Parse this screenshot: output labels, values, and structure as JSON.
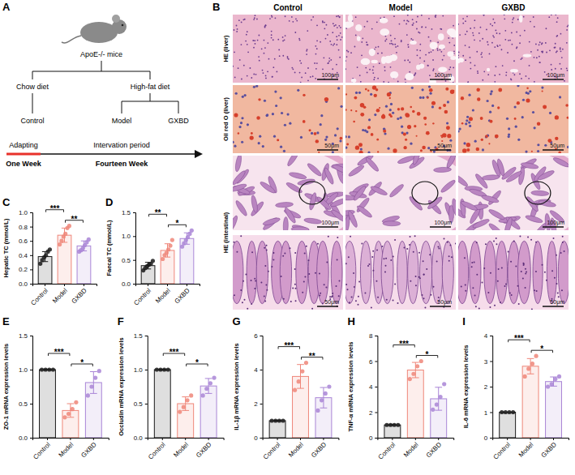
{
  "figure": {
    "panel_a": {
      "panel": "A",
      "subject": "ApoE-/- mice",
      "diets": [
        {
          "label": "Chow diet",
          "groups": [
            "Control"
          ]
        },
        {
          "label": "High-fat diet",
          "groups": [
            "Model",
            "GXBD"
          ]
        }
      ],
      "timeline": [
        {
          "phase": "Adapting",
          "duration": "One Week"
        },
        {
          "phase": "Intervation period",
          "duration": "Fourteen Week"
        }
      ]
    },
    "panel_b": {
      "panel": "B",
      "columns": [
        "Control",
        "Model",
        "GXBD"
      ],
      "rows": [
        {
          "label": "HE (liver)",
          "scale_bars": [
            "100μm",
            "100μm",
            "100μm"
          ]
        },
        {
          "label": "Oil red O (liver)",
          "scale_bars": [
            "50μm",
            "50μm",
            "50μm"
          ]
        },
        {
          "label": "HE (intestinal)",
          "scale_bars": [
            "100μm",
            "100μm",
            "100μm"
          ],
          "zoom_scale_bars": [
            "50μm",
            "50μm",
            "50μm"
          ]
        }
      ]
    }
  },
  "chart_data": [
    {
      "type": "bar",
      "panel": "C",
      "ylabel": "Hepatic TC (mmol/L)",
      "categories": [
        "Control",
        "Model",
        "GXBD"
      ],
      "values": [
        0.38,
        0.68,
        0.53
      ],
      "errors": [
        0.07,
        0.1,
        0.07
      ],
      "points": [
        [
          0.28,
          0.33,
          0.37,
          0.4,
          0.45,
          0.48
        ],
        [
          0.55,
          0.6,
          0.66,
          0.7,
          0.78,
          0.81
        ],
        [
          0.45,
          0.47,
          0.5,
          0.54,
          0.58,
          0.62
        ]
      ],
      "colors": [
        "#1a1a1a",
        "#ef8679",
        "#a985d6"
      ],
      "ylim": [
        0,
        1.0
      ],
      "yticks": [
        {
          "value": 0,
          "label": "0.0"
        },
        0.2,
        0.4,
        0.6,
        0.8,
        {
          "value": 1.0,
          "label": "1.0"
        }
      ],
      "annotations": [
        {
          "text": "***",
          "between": [
            "Control",
            "Model"
          ]
        },
        {
          "text": "**",
          "between": [
            "Model",
            "GXBD"
          ]
        }
      ]
    },
    {
      "type": "bar",
      "panel": "D",
      "ylabel": "Faecal TC (mmol/L)",
      "categories": [
        "Control",
        "Model",
        "GXBD"
      ],
      "values": [
        0.38,
        0.7,
        0.95
      ],
      "errors": [
        0.07,
        0.14,
        0.12
      ],
      "points": [
        [
          0.28,
          0.33,
          0.37,
          0.4,
          0.42,
          0.48
        ],
        [
          0.52,
          0.6,
          0.65,
          0.72,
          0.8,
          0.92
        ],
        [
          0.78,
          0.85,
          0.92,
          0.98,
          1.05,
          1.12
        ]
      ],
      "colors": [
        "#1a1a1a",
        "#ef8679",
        "#a985d6"
      ],
      "ylim": [
        0,
        1.5
      ],
      "yticks": [
        {
          "value": 0,
          "label": "0.0"
        },
        0.5,
        {
          "value": 1.0,
          "label": "1.0"
        },
        1.5
      ],
      "annotations": [
        {
          "text": "**",
          "between": [
            "Control",
            "Model"
          ]
        },
        {
          "text": "*",
          "between": [
            "Model",
            "GXBD"
          ]
        }
      ]
    },
    {
      "type": "bar",
      "panel": "E",
      "ylabel": "ZO-1 mRNA expression levels",
      "categories": [
        "Control",
        "Model",
        "GXBD"
      ],
      "values": [
        1.0,
        0.4,
        0.81
      ],
      "errors": [
        0,
        0.1,
        0.16
      ],
      "points": [
        [
          1.0,
          1.0,
          1.0,
          1.0
        ],
        [
          0.3,
          0.35,
          0.42,
          0.52
        ],
        [
          0.62,
          0.75,
          0.88,
          0.98
        ]
      ],
      "colors": [
        "#1a1a1a",
        "#ef8679",
        "#a985d6"
      ],
      "ylim": [
        0,
        1.5
      ],
      "yticks": [
        {
          "value": 0,
          "label": "0.0"
        },
        0.5,
        {
          "value": 1.0,
          "label": "1.0"
        },
        1.5
      ],
      "annotations": [
        {
          "text": "***",
          "between": [
            "Control",
            "Model"
          ]
        },
        {
          "text": "*",
          "between": [
            "Model",
            "GXBD"
          ]
        }
      ]
    },
    {
      "type": "bar",
      "panel": "F",
      "ylabel": "Occludin mRNA expression levels",
      "categories": [
        "Control",
        "Model",
        "GXBD"
      ],
      "values": [
        1.0,
        0.5,
        0.76
      ],
      "errors": [
        0,
        0.1,
        0.11
      ],
      "points": [
        [
          1.0,
          1.0,
          1.0,
          1.0
        ],
        [
          0.38,
          0.45,
          0.55,
          0.62
        ],
        [
          0.62,
          0.72,
          0.8,
          0.88
        ]
      ],
      "colors": [
        "#1a1a1a",
        "#ef8679",
        "#a985d6"
      ],
      "ylim": [
        0,
        1.5
      ],
      "yticks": [
        {
          "value": 0,
          "label": "0.0"
        },
        0.5,
        {
          "value": 1.0,
          "label": "1.0"
        },
        1.5
      ],
      "annotations": [
        {
          "text": "***",
          "between": [
            "Control",
            "Model"
          ]
        },
        {
          "text": "*",
          "between": [
            "Model",
            "GXBD"
          ]
        }
      ]
    },
    {
      "type": "bar",
      "panel": "G",
      "ylabel": "IL-1β mRNA expression levels",
      "categories": [
        "Control",
        "Model",
        "GXBD"
      ],
      "values": [
        1.0,
        3.6,
        2.35
      ],
      "errors": [
        0,
        0.7,
        0.6
      ],
      "points": [
        [
          1.0,
          1.0,
          1.0,
          1.0
        ],
        [
          2.8,
          3.3,
          3.9,
          4.4
        ],
        [
          1.6,
          2.2,
          2.6,
          3.0
        ]
      ],
      "colors": [
        "#1a1a1a",
        "#ef8679",
        "#a985d6"
      ],
      "ylim": [
        0,
        6
      ],
      "yticks": [
        0,
        2,
        4,
        6
      ],
      "annotations": [
        {
          "text": "***",
          "between": [
            "Control",
            "Model"
          ]
        },
        {
          "text": "**",
          "between": [
            "Model",
            "GXBD"
          ]
        }
      ]
    },
    {
      "type": "bar",
      "panel": "H",
      "ylabel": "TNF-α mRNA expression levels",
      "categories": [
        "Control",
        "Model",
        "GXBD"
      ],
      "values": [
        1.0,
        5.3,
        3.05
      ],
      "errors": [
        0,
        0.6,
        0.9
      ],
      "points": [
        [
          1.0,
          1.0,
          1.0,
          1.0
        ],
        [
          4.6,
          5.0,
          5.6,
          6.0
        ],
        [
          2.2,
          2.6,
          3.2,
          4.2
        ]
      ],
      "colors": [
        "#1a1a1a",
        "#ef8679",
        "#a985d6"
      ],
      "ylim": [
        0,
        8
      ],
      "yticks": [
        0,
        2,
        4,
        6,
        8
      ],
      "annotations": [
        {
          "text": "***",
          "between": [
            "Control",
            "Model"
          ]
        },
        {
          "text": "*",
          "between": [
            "Model",
            "GXBD"
          ]
        }
      ]
    },
    {
      "type": "bar",
      "panel": "I",
      "ylabel": "IL-6 mRNA expression levels",
      "categories": [
        "Control",
        "Model",
        "GXBD"
      ],
      "values": [
        1.0,
        2.8,
        2.2
      ],
      "errors": [
        0,
        0.3,
        0.18
      ],
      "points": [
        [
          1.0,
          1.0,
          1.0,
          1.0
        ],
        [
          2.4,
          2.7,
          2.9,
          3.2
        ],
        [
          2.0,
          2.1,
          2.3,
          2.4
        ]
      ],
      "colors": [
        "#1a1a1a",
        "#ef8679",
        "#a985d6"
      ],
      "ylim": [
        0,
        4
      ],
      "yticks": [
        0,
        1,
        2,
        3,
        4
      ],
      "annotations": [
        {
          "text": "***",
          "between": [
            "Control",
            "Model"
          ]
        },
        {
          "text": "*",
          "between": [
            "Model",
            "GXBD"
          ]
        }
      ]
    }
  ]
}
